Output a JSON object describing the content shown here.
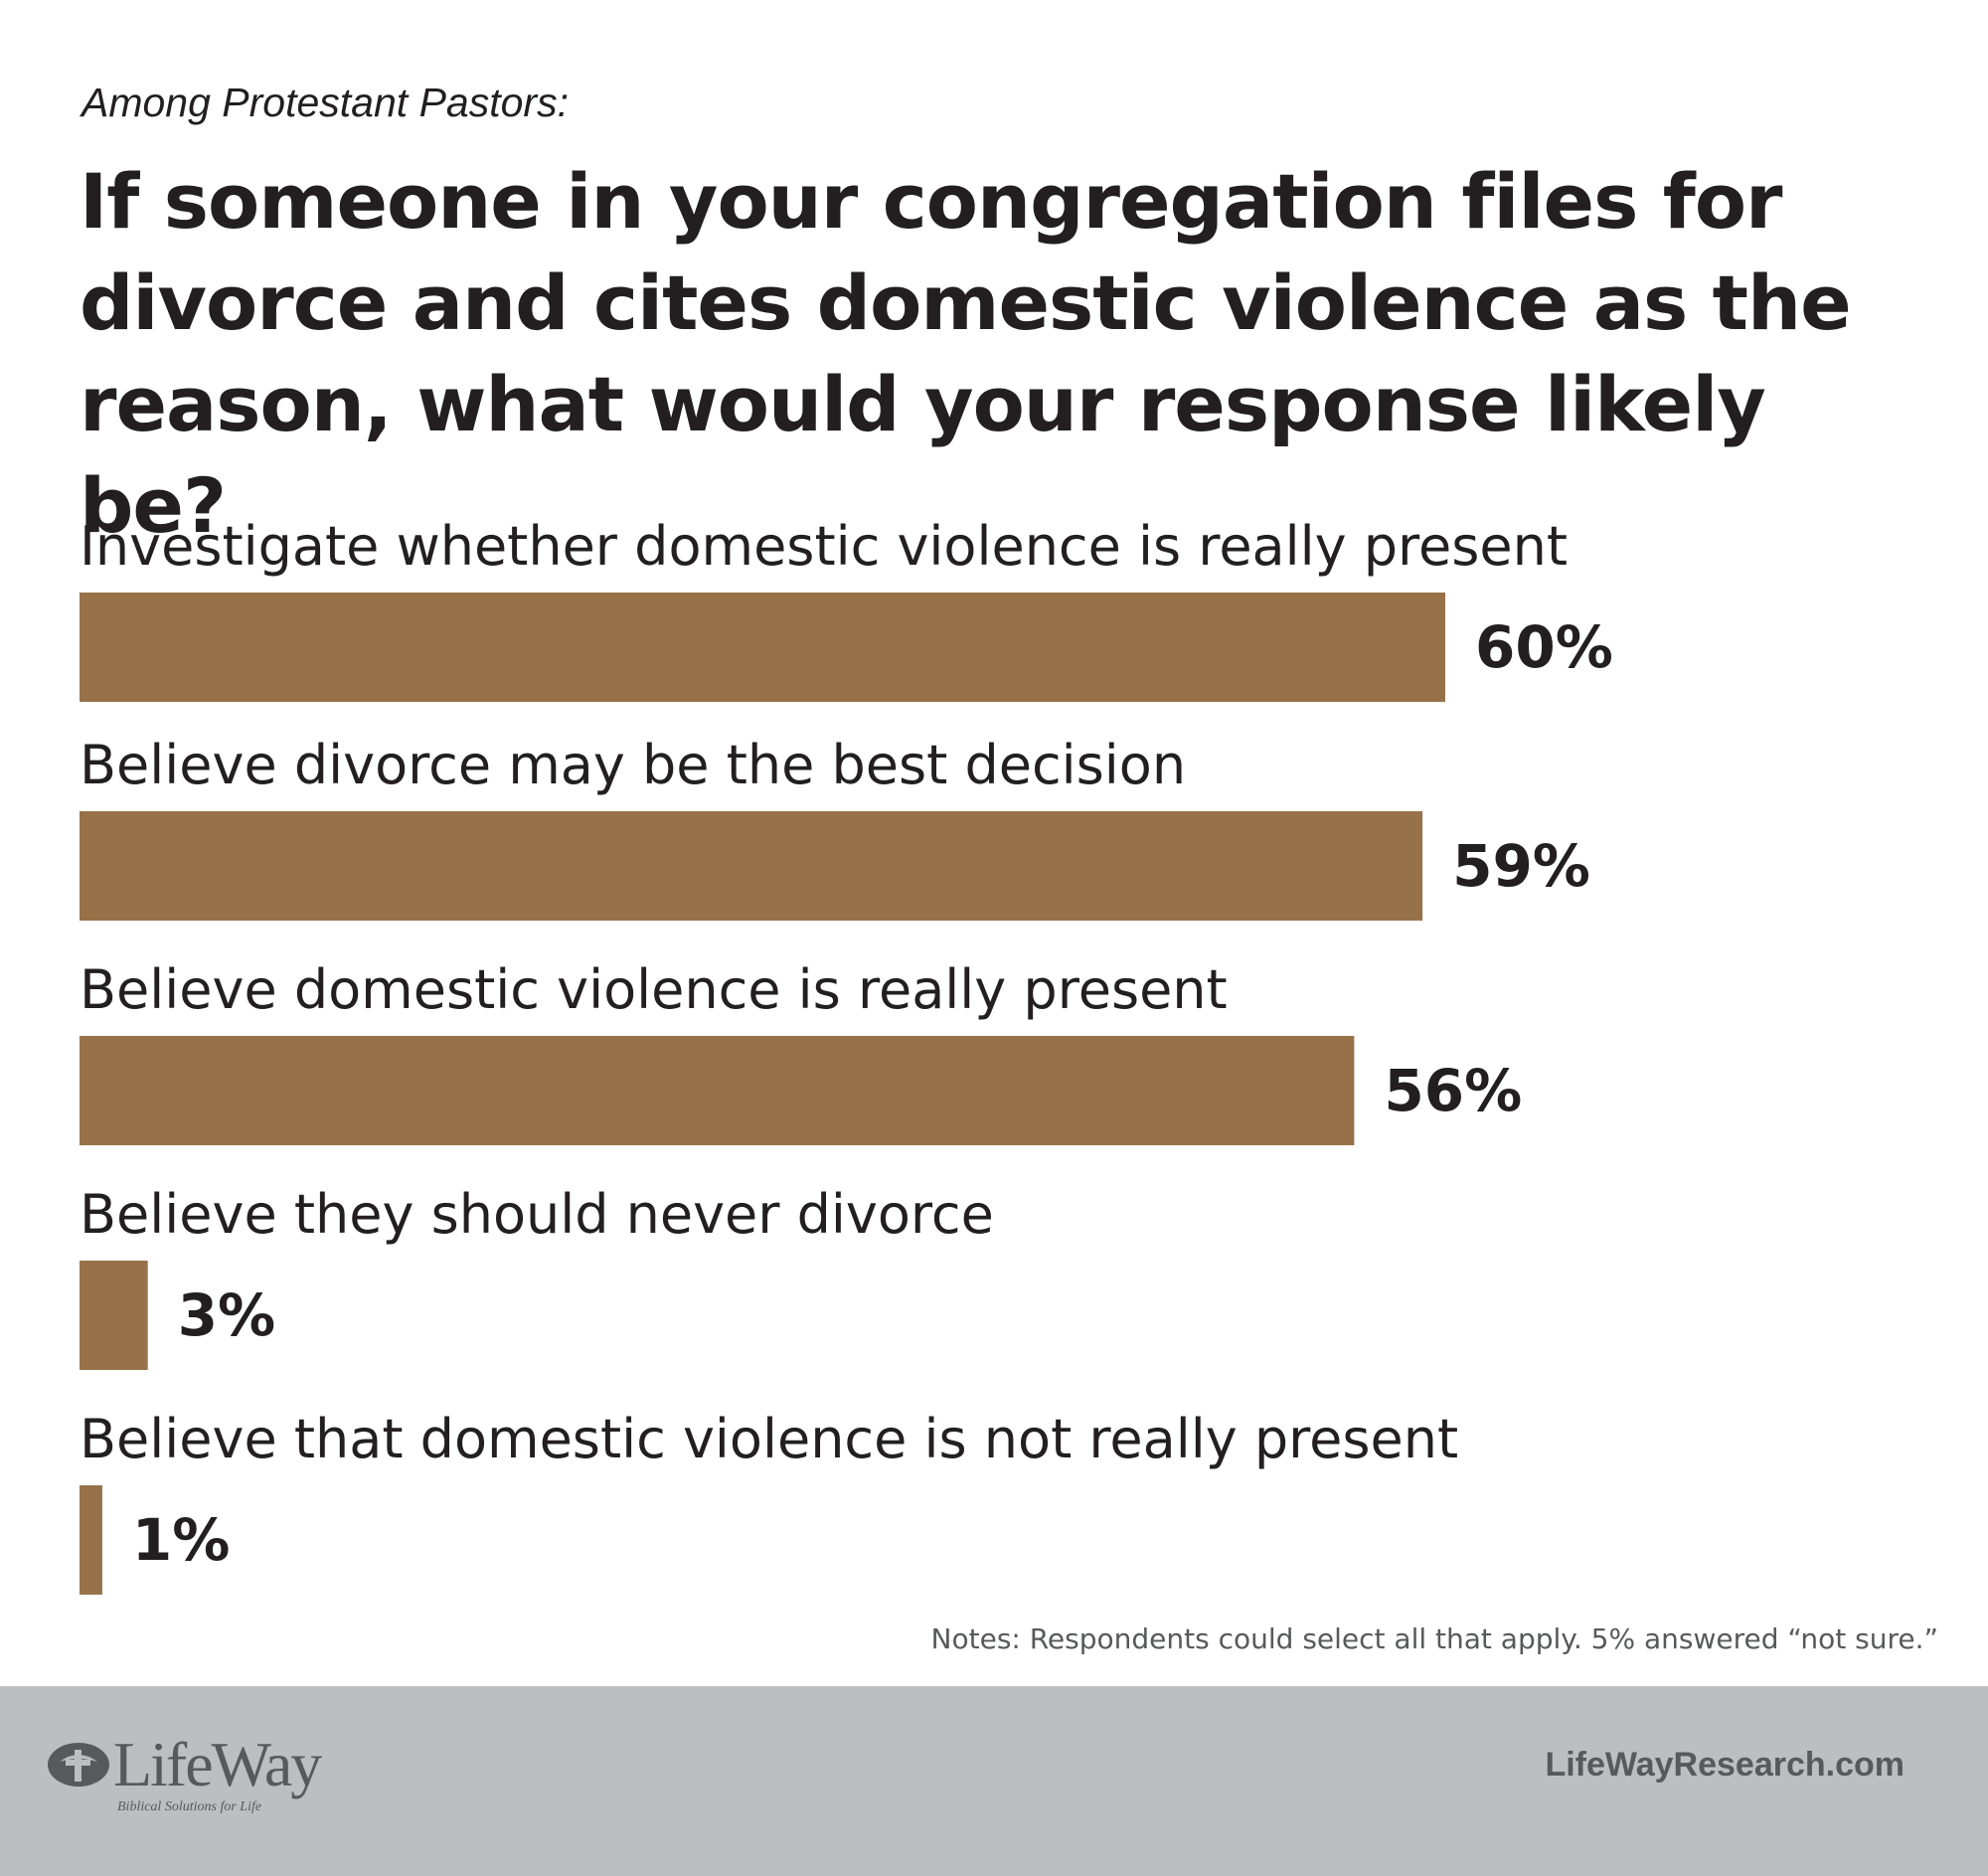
{
  "header": {
    "subtitle": "Among Protestant Pastors:",
    "title": "If someone in your congregation files for divorce and cites domestic violence as the reason, what would your response likely be?"
  },
  "chart_data": {
    "type": "bar",
    "orientation": "horizontal",
    "title": "If someone in your congregation files for divorce and cites domestic violence as the reason, what would your response likely be?",
    "subtitle": "Among Protestant Pastors:",
    "categories": [
      "Investigate whether domestic violence is really present",
      "Believe divorce may be the best decision",
      "Believe domestic violence is really present",
      "Believe they should never divorce",
      "Believe that domestic violence is not really present"
    ],
    "values": [
      60,
      59,
      56,
      3,
      1
    ],
    "value_labels": [
      "60%",
      "59%",
      "56%",
      "3%",
      "1%"
    ],
    "unit": "%",
    "xlim": [
      0,
      100
    ],
    "grid": false,
    "legend": "none",
    "bar_color": "#977249"
  },
  "notes": "Notes: Respondents could select all that apply. 5% answered “not sure.”",
  "footer": {
    "logo_text": "LifeWay",
    "logo_tagline": "Biblical Solutions for Life",
    "site": "LifeWayResearch.com",
    "background": "#bcbec0"
  }
}
